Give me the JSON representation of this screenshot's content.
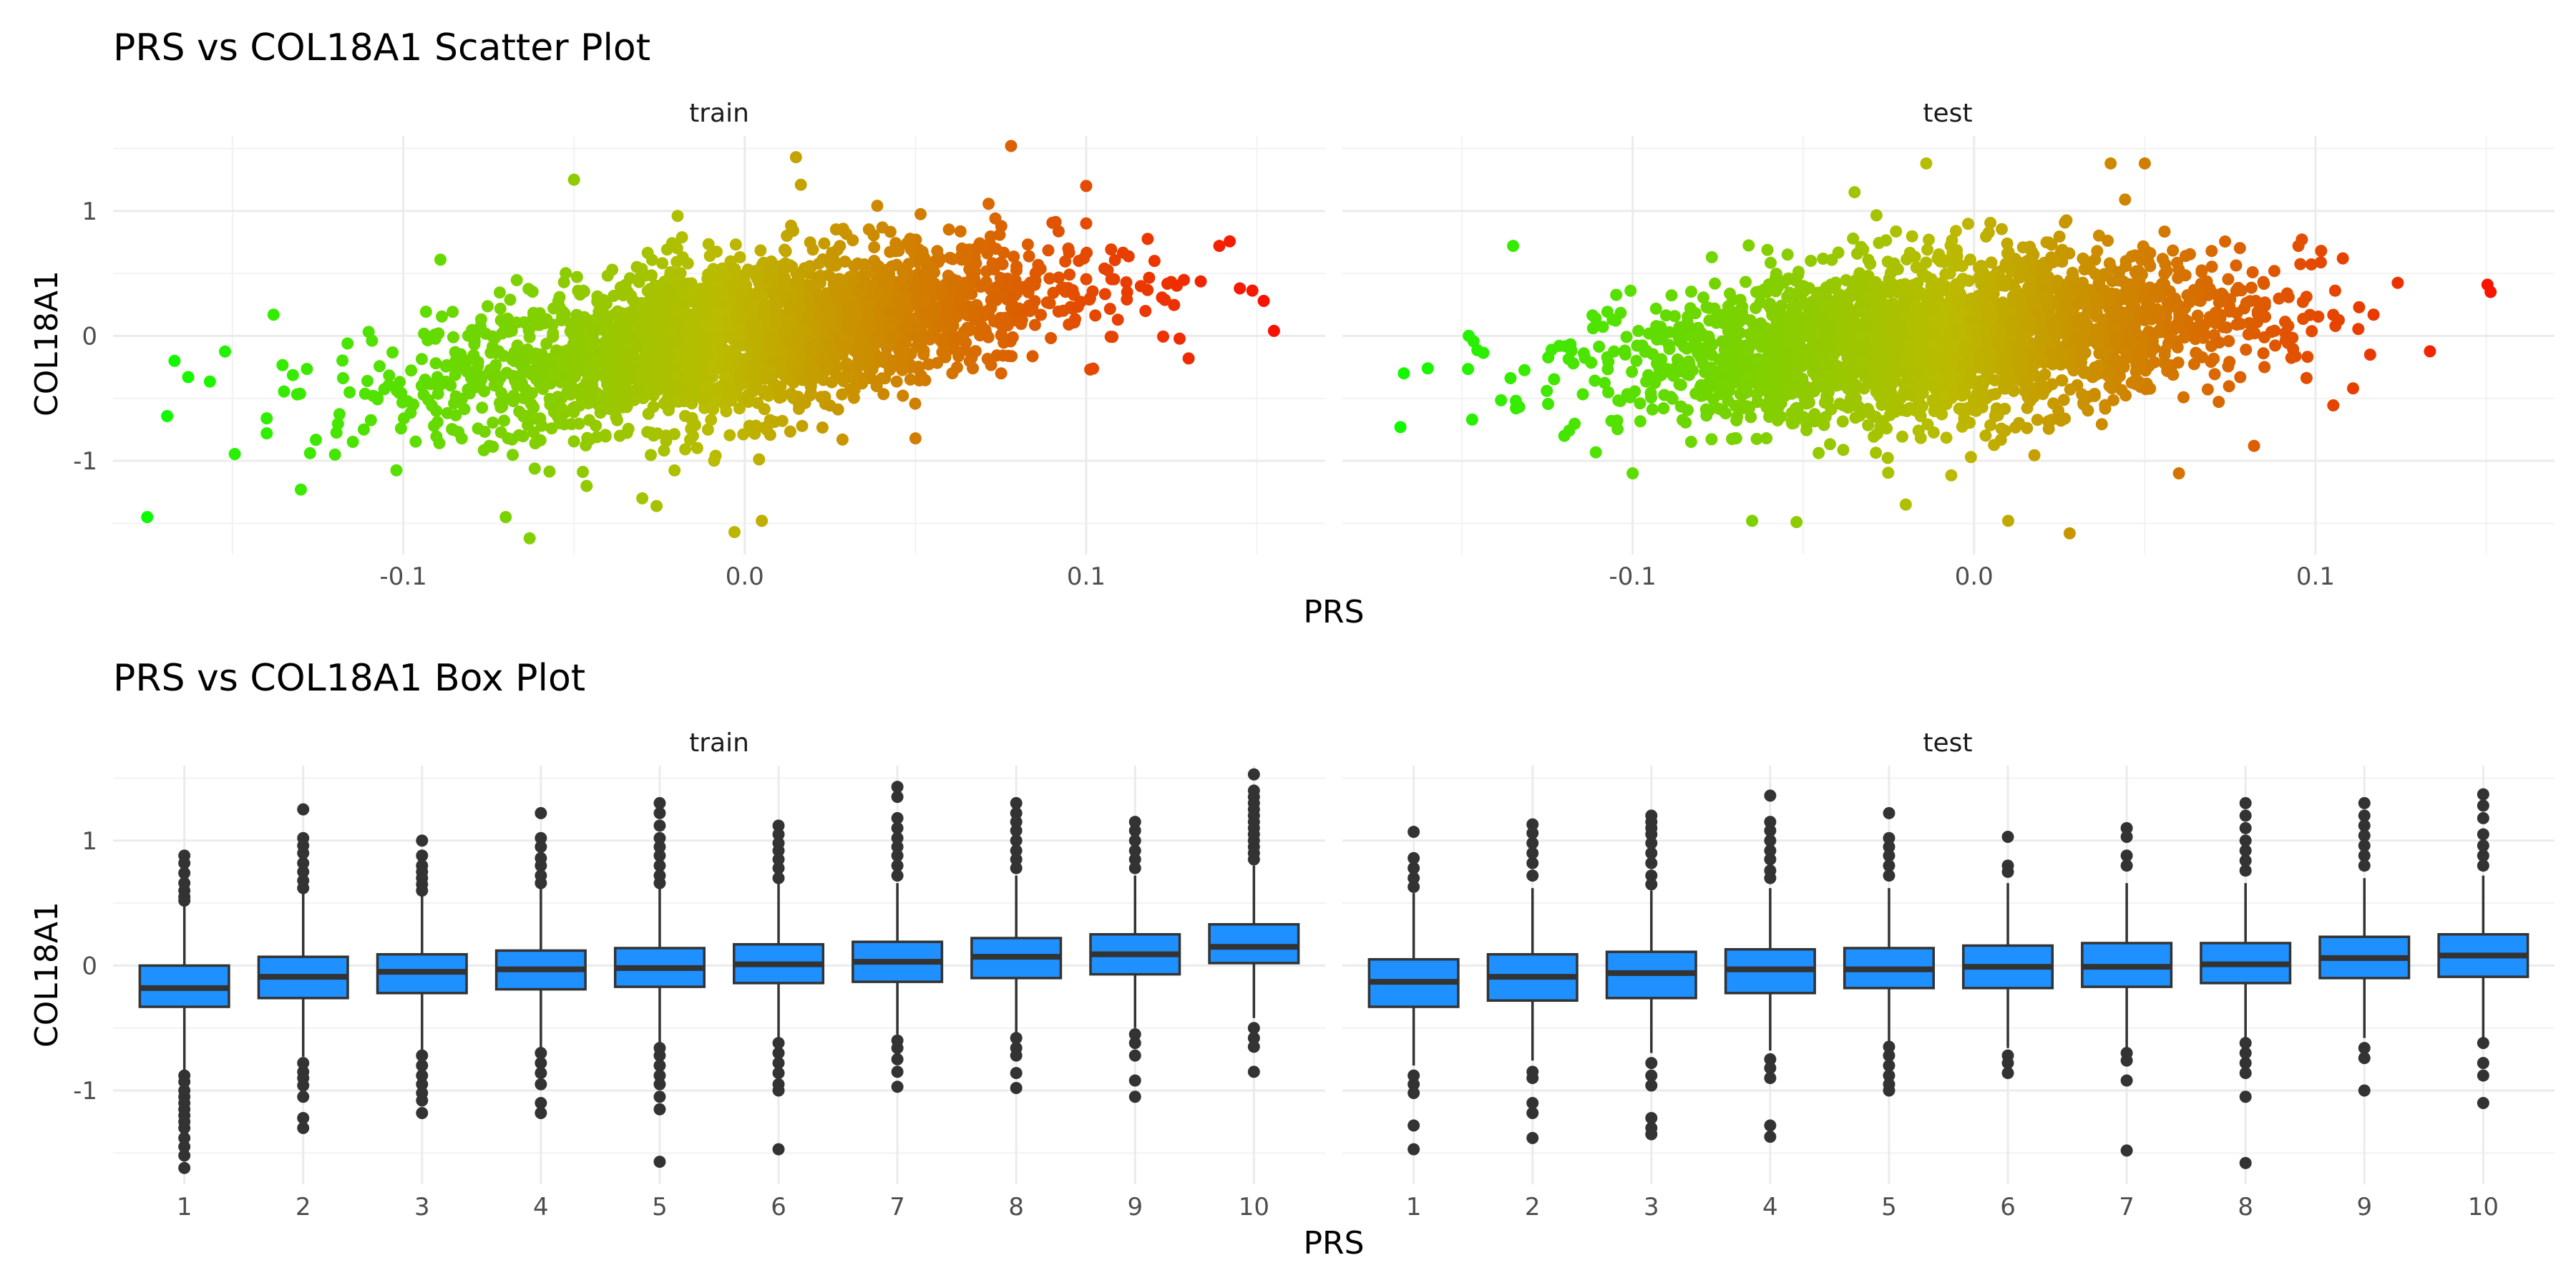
{
  "chart_data": [
    {
      "type": "scatter",
      "title": "PRS vs COL18A1 Scatter Plot",
      "xlabel": "PRS",
      "ylabel": "COL18A1",
      "xlim": [
        -0.185,
        0.17
      ],
      "ylim": [
        -1.75,
        1.6
      ],
      "x_ticks": [
        "-0.1",
        "0.0",
        "0.1"
      ],
      "y_ticks": [
        "-1",
        "0",
        "1"
      ],
      "color_scale": {
        "low": "#00ff00",
        "mid": "#bbbb00",
        "high": "#ff0000"
      },
      "grid": true,
      "legend": "none",
      "panels": [
        {
          "name": "train",
          "x_center": 0.0,
          "x_sd": 0.045,
          "slope": 4.0,
          "y_sd": 0.33,
          "outliers": [
            {
              "x": -0.175,
              "y": -1.45
            },
            {
              "x": -0.167,
              "y": -0.2
            },
            {
              "x": -0.163,
              "y": -0.33
            },
            {
              "x": -0.14,
              "y": -0.78
            },
            {
              "x": -0.14,
              "y": -0.66
            },
            {
              "x": -0.138,
              "y": 0.17
            },
            {
              "x": -0.13,
              "y": -1.23
            },
            {
              "x": -0.12,
              "y": -0.95
            },
            {
              "x": -0.07,
              "y": -1.45
            },
            {
              "x": -0.063,
              "y": -1.62
            },
            {
              "x": -0.05,
              "y": 1.25
            },
            {
              "x": -0.03,
              "y": -1.3
            },
            {
              "x": -0.003,
              "y": -1.57
            },
            {
              "x": 0.005,
              "y": -1.48
            },
            {
              "x": 0.015,
              "y": 1.43
            },
            {
              "x": 0.05,
              "y": -0.82
            },
            {
              "x": 0.078,
              "y": 1.52
            },
            {
              "x": 0.1,
              "y": 1.2
            },
            {
              "x": 0.12,
              "y": 0.6
            },
            {
              "x": 0.13,
              "y": -0.18
            },
            {
              "x": 0.139,
              "y": 0.72
            },
            {
              "x": 0.145,
              "y": 0.38
            },
            {
              "x": 0.152,
              "y": 0.28
            },
            {
              "x": 0.155,
              "y": 0.04
            },
            {
              "x": 0.112,
              "y": 0.35
            },
            {
              "x": 0.1,
              "y": 0.9
            }
          ]
        },
        {
          "name": "test",
          "x_center": -0.01,
          "x_sd": 0.045,
          "slope": 2.2,
          "y_sd": 0.33,
          "outliers": [
            {
              "x": -0.168,
              "y": -0.73
            },
            {
              "x": -0.167,
              "y": -0.3
            },
            {
              "x": -0.16,
              "y": -0.26
            },
            {
              "x": -0.147,
              "y": -0.67
            },
            {
              "x": -0.148,
              "y": 0.0
            },
            {
              "x": -0.135,
              "y": 0.72
            },
            {
              "x": -0.12,
              "y": -0.8
            },
            {
              "x": -0.1,
              "y": -1.1
            },
            {
              "x": -0.065,
              "y": -1.48
            },
            {
              "x": -0.052,
              "y": -1.49
            },
            {
              "x": -0.035,
              "y": 1.15
            },
            {
              "x": -0.02,
              "y": -1.35
            },
            {
              "x": -0.014,
              "y": 1.38
            },
            {
              "x": 0.01,
              "y": -1.48
            },
            {
              "x": 0.028,
              "y": -1.58
            },
            {
              "x": 0.04,
              "y": 1.38
            },
            {
              "x": 0.05,
              "y": 1.38
            },
            {
              "x": 0.06,
              "y": -1.1
            },
            {
              "x": 0.082,
              "y": -0.88
            },
            {
              "x": 0.108,
              "y": 0.62
            },
            {
              "x": 0.111,
              "y": -0.42
            },
            {
              "x": 0.117,
              "y": 0.17
            },
            {
              "x": 0.116,
              "y": -0.15
            },
            {
              "x": 0.095,
              "y": 0.72
            }
          ]
        }
      ]
    },
    {
      "type": "box",
      "title": "PRS vs COL18A1 Box Plot",
      "xlabel": "PRS",
      "ylabel": "COL18A1",
      "categories": [
        "1",
        "2",
        "3",
        "4",
        "5",
        "6",
        "7",
        "8",
        "9",
        "10"
      ],
      "ylim": [
        -1.75,
        1.6
      ],
      "y_ticks": [
        "-1",
        "0",
        "1"
      ],
      "box_fill": "#1E90FF",
      "box_stroke": "#333333",
      "grid": true,
      "legend": "none",
      "panels": [
        {
          "name": "train",
          "boxes": [
            {
              "q1": -0.33,
              "median": -0.18,
              "q3": 0.0,
              "lower": -0.85,
              "upper": 0.5,
              "outliers": [
                0.88,
                0.82,
                0.74,
                0.66,
                0.6,
                0.55,
                0.52,
                -0.88,
                -0.93,
                -1.0,
                -1.05,
                -1.1,
                -1.15,
                -1.2,
                -1.25,
                -1.3,
                -1.38,
                -1.45,
                -1.52,
                -1.62
              ]
            },
            {
              "q1": -0.26,
              "median": -0.09,
              "q3": 0.07,
              "lower": -0.73,
              "upper": 0.58,
              "outliers": [
                1.25,
                1.02,
                0.96,
                0.9,
                0.82,
                0.75,
                0.68,
                0.62,
                -0.78,
                -0.85,
                -0.9,
                -0.96,
                -1.05,
                -1.22,
                -1.3
              ]
            },
            {
              "q1": -0.22,
              "median": -0.05,
              "q3": 0.09,
              "lower": -0.68,
              "upper": 0.58,
              "outliers": [
                1.0,
                0.88,
                0.8,
                0.75,
                0.7,
                0.65,
                0.6,
                -0.72,
                -0.8,
                -0.88,
                -0.95,
                -1.02,
                -1.08,
                -1.18
              ]
            },
            {
              "q1": -0.19,
              "median": -0.03,
              "q3": 0.12,
              "lower": -0.66,
              "upper": 0.62,
              "outliers": [
                1.22,
                1.02,
                0.95,
                0.86,
                0.8,
                0.72,
                0.66,
                -0.7,
                -0.78,
                -0.86,
                -0.95,
                -1.1,
                -1.18
              ]
            },
            {
              "q1": -0.17,
              "median": -0.02,
              "q3": 0.14,
              "lower": -0.62,
              "upper": 0.62,
              "outliers": [
                1.3,
                1.22,
                1.12,
                1.02,
                0.95,
                0.88,
                0.8,
                0.72,
                0.66,
                -0.66,
                -0.72,
                -0.8,
                -0.88,
                -0.95,
                -1.05,
                -1.15,
                -1.57
              ]
            },
            {
              "q1": -0.14,
              "median": 0.01,
              "q3": 0.17,
              "lower": -0.58,
              "upper": 0.66,
              "outliers": [
                1.12,
                1.05,
                0.98,
                0.92,
                0.85,
                0.78,
                0.7,
                -0.62,
                -0.7,
                -0.78,
                -0.86,
                -0.95,
                -1.0,
                -1.47
              ]
            },
            {
              "q1": -0.13,
              "median": 0.03,
              "q3": 0.19,
              "lower": -0.55,
              "upper": 0.66,
              "outliers": [
                1.43,
                1.35,
                1.18,
                1.1,
                1.02,
                0.95,
                0.88,
                0.8,
                0.72,
                -0.6,
                -0.66,
                -0.75,
                -0.85,
                -0.97
              ]
            },
            {
              "q1": -0.1,
              "median": 0.07,
              "q3": 0.22,
              "lower": -0.55,
              "upper": 0.72,
              "outliers": [
                1.3,
                1.22,
                1.15,
                1.08,
                1.0,
                0.92,
                0.85,
                0.78,
                -0.58,
                -0.66,
                -0.72,
                -0.86,
                -0.98
              ]
            },
            {
              "q1": -0.07,
              "median": 0.09,
              "q3": 0.25,
              "lower": -0.5,
              "upper": 0.72,
              "outliers": [
                1.15,
                1.08,
                1.0,
                0.92,
                0.85,
                0.78,
                -0.55,
                -0.62,
                -0.72,
                -0.92,
                -1.05
              ]
            },
            {
              "q1": 0.02,
              "median": 0.15,
              "q3": 0.33,
              "lower": -0.42,
              "upper": 0.8,
              "outliers": [
                1.53,
                1.4,
                1.35,
                1.3,
                1.25,
                1.2,
                1.15,
                1.1,
                1.05,
                1.0,
                0.95,
                0.9,
                0.85,
                -0.5,
                -0.58,
                -0.65,
                -0.85
              ]
            }
          ]
        },
        {
          "name": "test",
          "boxes": [
            {
              "q1": -0.33,
              "median": -0.13,
              "q3": 0.05,
              "lower": -0.8,
              "upper": 0.58,
              "outliers": [
                1.07,
                0.86,
                0.78,
                0.7,
                0.63,
                -0.88,
                -0.95,
                -1.02,
                -1.28,
                -1.47
              ]
            },
            {
              "q1": -0.28,
              "median": -0.09,
              "q3": 0.09,
              "lower": -0.76,
              "upper": 0.62,
              "outliers": [
                1.13,
                1.06,
                0.98,
                0.9,
                0.82,
                0.72,
                -0.85,
                -0.9,
                -1.1,
                -1.18,
                -1.38
              ]
            },
            {
              "q1": -0.26,
              "median": -0.06,
              "q3": 0.11,
              "lower": -0.7,
              "upper": 0.6,
              "outliers": [
                1.2,
                1.15,
                1.1,
                1.05,
                0.98,
                0.9,
                0.82,
                0.72,
                0.65,
                -0.78,
                -0.88,
                -0.96,
                -1.22,
                -1.3,
                -1.35
              ]
            },
            {
              "q1": -0.22,
              "median": -0.03,
              "q3": 0.13,
              "lower": -0.68,
              "upper": 0.62,
              "outliers": [
                1.36,
                1.15,
                1.08,
                1.0,
                0.92,
                0.85,
                0.76,
                0.7,
                -0.75,
                -0.82,
                -0.9,
                -1.28,
                -1.37
              ]
            },
            {
              "q1": -0.18,
              "median": -0.03,
              "q3": 0.14,
              "lower": -0.62,
              "upper": 0.62,
              "outliers": [
                1.22,
                1.02,
                0.95,
                0.88,
                0.8,
                0.72,
                -0.65,
                -0.72,
                -0.8,
                -0.88,
                -0.95,
                -1.0
              ]
            },
            {
              "q1": -0.18,
              "median": -0.01,
              "q3": 0.16,
              "lower": -0.66,
              "upper": 0.66,
              "outliers": [
                1.03,
                0.8,
                0.75,
                -0.72,
                -0.78,
                -0.86
              ]
            },
            {
              "q1": -0.17,
              "median": -0.01,
              "q3": 0.18,
              "lower": -0.66,
              "upper": 0.66,
              "outliers": [
                1.1,
                1.03,
                0.88,
                0.8,
                -0.7,
                -0.76,
                -0.92,
                -1.48
              ]
            },
            {
              "q1": -0.14,
              "median": 0.01,
              "q3": 0.18,
              "lower": -0.6,
              "upper": 0.66,
              "outliers": [
                1.3,
                1.2,
                1.1,
                1.0,
                0.92,
                0.84,
                0.76,
                -0.62,
                -0.7,
                -0.78,
                -0.86,
                -1.05,
                -1.58
              ]
            },
            {
              "q1": -0.1,
              "median": 0.06,
              "q3": 0.23,
              "lower": -0.58,
              "upper": 0.7,
              "outliers": [
                1.3,
                1.2,
                1.12,
                1.04,
                0.96,
                0.88,
                0.8,
                -0.66,
                -0.74,
                -1.0
              ]
            },
            {
              "q1": -0.09,
              "median": 0.08,
              "q3": 0.25,
              "lower": -0.58,
              "upper": 0.72,
              "outliers": [
                1.37,
                1.28,
                1.18,
                1.05,
                0.96,
                0.88,
                0.8,
                -0.62,
                -0.78,
                -0.88,
                -1.1
              ]
            }
          ]
        }
      ]
    }
  ]
}
